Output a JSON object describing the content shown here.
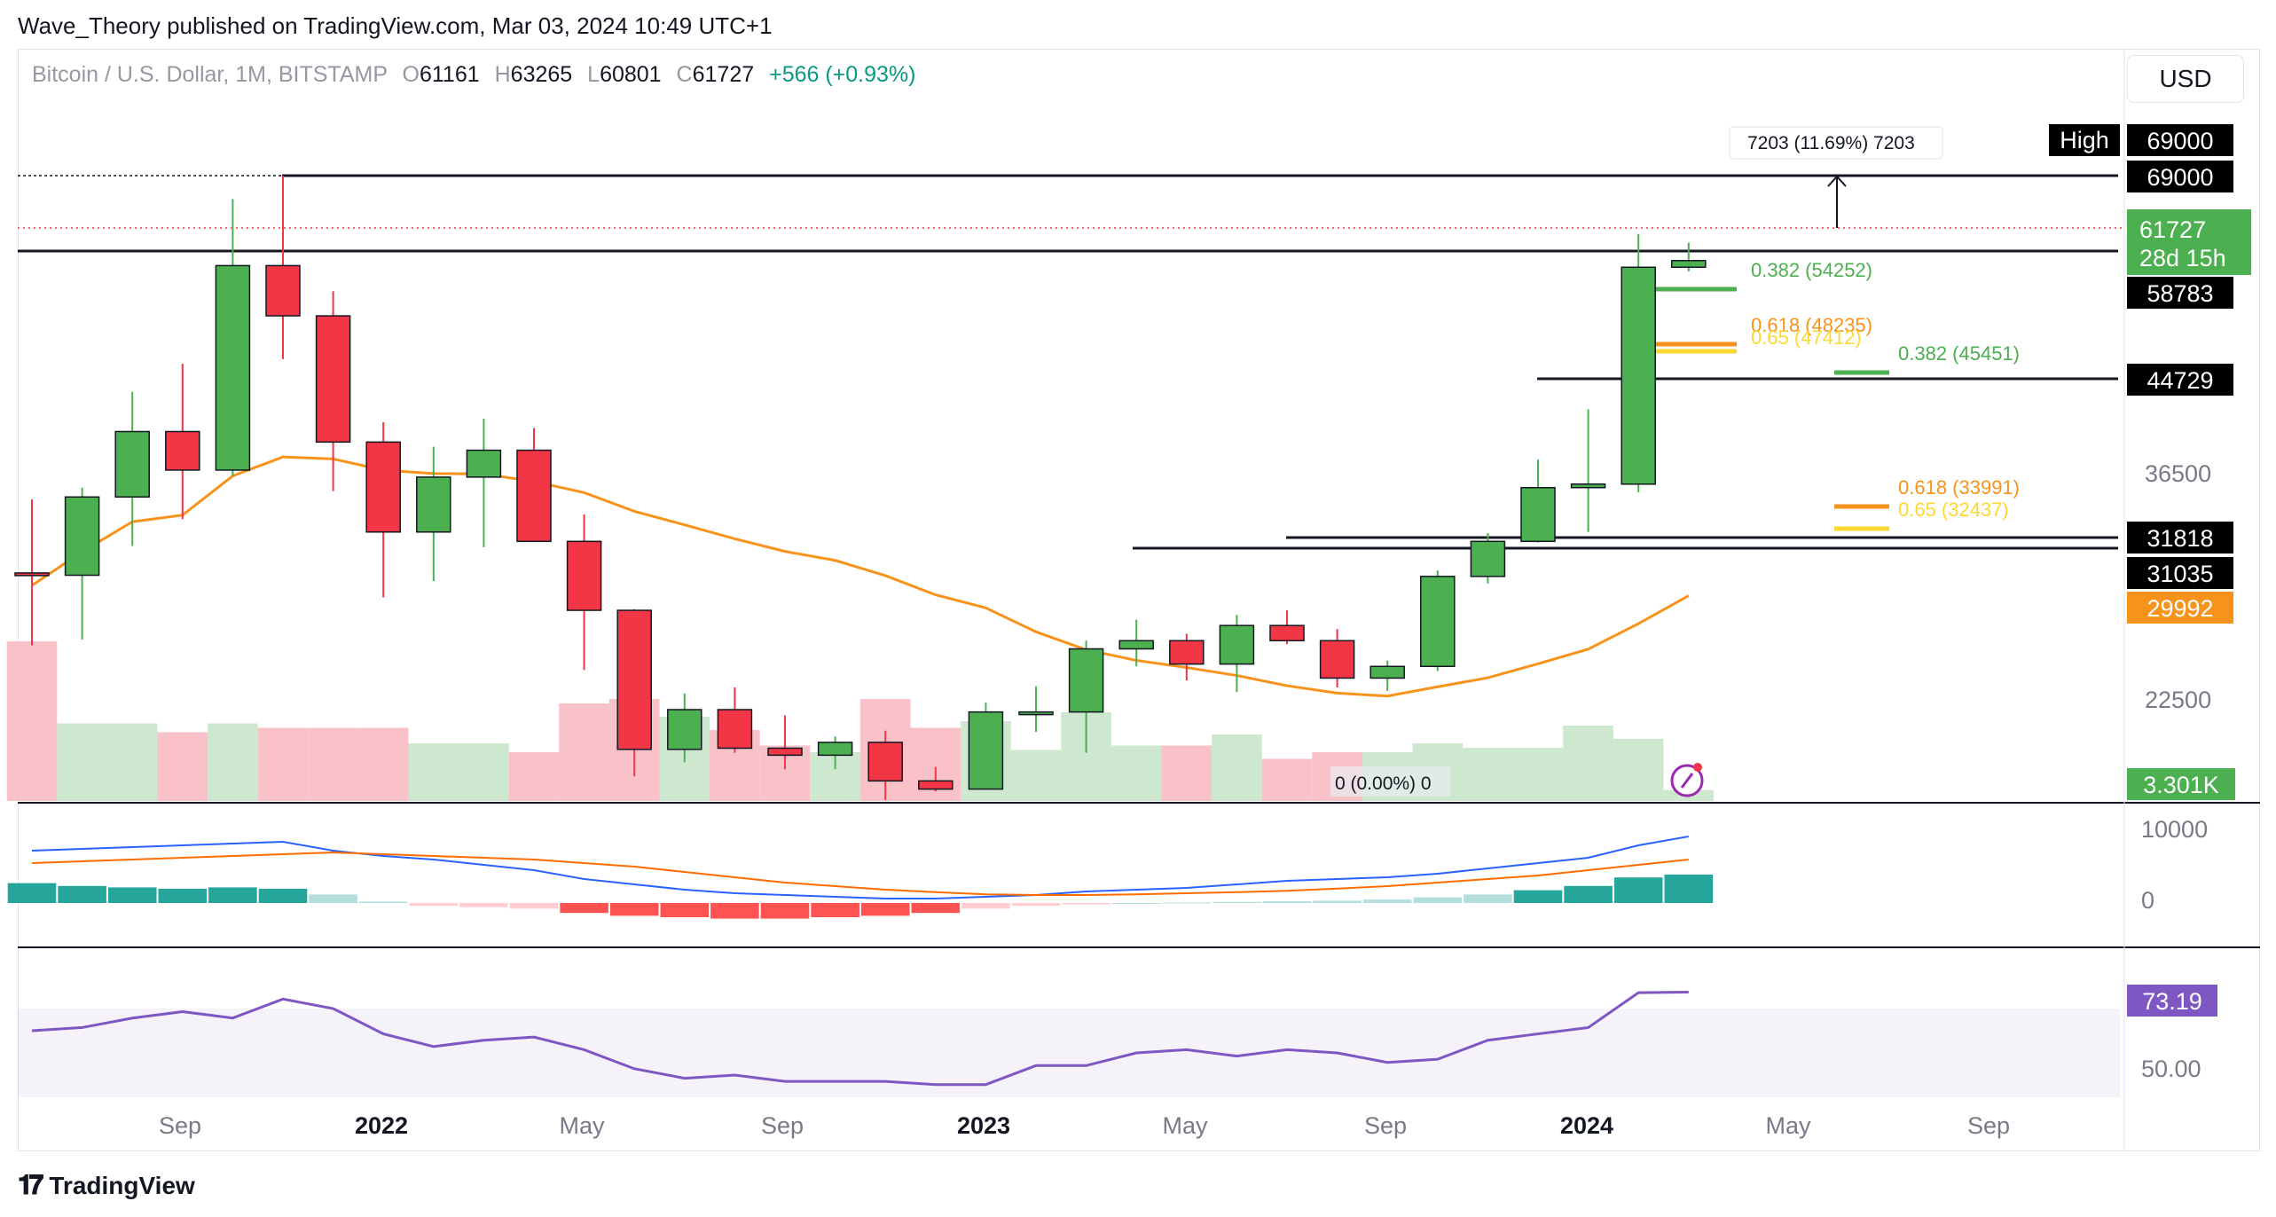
{
  "header": {
    "caption": "Wave_Theory published on TradingView.com, Mar 03, 2024 10:49 UTC+1"
  },
  "legend": {
    "symbol": "Bitcoin / U.S. Dollar, 1M, BITSTAMP",
    "open_label": "O",
    "open": "61161",
    "high_label": "H",
    "high": "63265",
    "low_label": "L",
    "low": "60801",
    "close_label": "C",
    "close": "61727",
    "change": "+566 (+0.93%)"
  },
  "currency_button": "USD",
  "footer": {
    "brand": "TradingView",
    "logo_icon": "tradingview-logo-icon"
  },
  "colors": {
    "up": "#4caf50",
    "down": "#f23645",
    "ma": "#f7931a",
    "fib_green": "#4caf50",
    "fib_orange": "#f7931a",
    "fib_yellow": "#fdd835",
    "rsi": "#7e57c2",
    "macd": "#2962ff",
    "signal": "#ff6d00"
  },
  "chart_data": {
    "type": "candlestick",
    "timeframe": "1M",
    "x_labels": [
      "Sep",
      "2022",
      "May",
      "Sep",
      "2023",
      "May",
      "Sep",
      "2024",
      "May",
      "Sep"
    ],
    "candles": [
      {
        "t": "2021-06",
        "o": 35000,
        "h": 41300,
        "l": 28800,
        "c": 34800
      },
      {
        "t": "2021-07",
        "o": 34800,
        "h": 42300,
        "l": 29300,
        "c": 41500
      },
      {
        "t": "2021-08",
        "o": 41500,
        "h": 50500,
        "l": 37300,
        "c": 47100
      },
      {
        "t": "2021-09",
        "o": 47100,
        "h": 52900,
        "l": 39600,
        "c": 43800
      },
      {
        "t": "2021-10",
        "o": 43800,
        "h": 67000,
        "l": 43300,
        "c": 61300
      },
      {
        "t": "2021-11",
        "o": 61300,
        "h": 69000,
        "l": 53300,
        "c": 57000
      },
      {
        "t": "2021-12",
        "o": 57000,
        "h": 59100,
        "l": 42000,
        "c": 46200
      },
      {
        "t": "2022-01",
        "o": 46200,
        "h": 47900,
        "l": 32900,
        "c": 38500
      },
      {
        "t": "2022-02",
        "o": 38500,
        "h": 45800,
        "l": 34300,
        "c": 43200
      },
      {
        "t": "2022-03",
        "o": 43200,
        "h": 48200,
        "l": 37200,
        "c": 45500
      },
      {
        "t": "2022-04",
        "o": 45500,
        "h": 47400,
        "l": 37700,
        "c": 37700
      },
      {
        "t": "2022-05",
        "o": 37700,
        "h": 40000,
        "l": 26700,
        "c": 31800
      },
      {
        "t": "2022-06",
        "o": 31800,
        "h": 31900,
        "l": 17600,
        "c": 19900
      },
      {
        "t": "2022-07",
        "o": 19900,
        "h": 24700,
        "l": 18800,
        "c": 23300
      },
      {
        "t": "2022-08",
        "o": 23300,
        "h": 25200,
        "l": 19600,
        "c": 20000
      },
      {
        "t": "2022-09",
        "o": 20000,
        "h": 22800,
        "l": 18200,
        "c": 19400
      },
      {
        "t": "2022-10",
        "o": 19400,
        "h": 21000,
        "l": 18200,
        "c": 20500
      },
      {
        "t": "2022-11",
        "o": 20500,
        "h": 21500,
        "l": 15500,
        "c": 17200
      },
      {
        "t": "2022-12",
        "o": 17200,
        "h": 18400,
        "l": 16300,
        "c": 16500
      },
      {
        "t": "2023-01",
        "o": 16500,
        "h": 23900,
        "l": 16500,
        "c": 23100
      },
      {
        "t": "2023-02",
        "o": 23100,
        "h": 25300,
        "l": 21400,
        "c": 23100
      },
      {
        "t": "2023-03",
        "o": 23100,
        "h": 29200,
        "l": 19600,
        "c": 28500
      },
      {
        "t": "2023-04",
        "o": 28500,
        "h": 31000,
        "l": 27000,
        "c": 29200
      },
      {
        "t": "2023-05",
        "o": 29200,
        "h": 29800,
        "l": 25800,
        "c": 27200
      },
      {
        "t": "2023-06",
        "o": 27200,
        "h": 31400,
        "l": 24800,
        "c": 30500
      },
      {
        "t": "2023-07",
        "o": 30500,
        "h": 31800,
        "l": 28900,
        "c": 29200
      },
      {
        "t": "2023-08",
        "o": 29200,
        "h": 30200,
        "l": 25200,
        "c": 26000
      },
      {
        "t": "2023-09",
        "o": 26000,
        "h": 27500,
        "l": 24900,
        "c": 27000
      },
      {
        "t": "2023-10",
        "o": 27000,
        "h": 35200,
        "l": 26600,
        "c": 34700
      },
      {
        "t": "2023-11",
        "o": 34700,
        "h": 38400,
        "l": 34100,
        "c": 37700
      },
      {
        "t": "2023-12",
        "o": 37700,
        "h": 44700,
        "l": 37600,
        "c": 42300
      },
      {
        "t": "2024-01",
        "o": 42300,
        "h": 49000,
        "l": 38500,
        "c": 42600
      },
      {
        "t": "2024-02",
        "o": 42600,
        "h": 64000,
        "l": 41900,
        "c": 61161
      },
      {
        "t": "2024-03",
        "o": 61161,
        "h": 63265,
        "l": 60801,
        "c": 61727
      }
    ],
    "moving_average": {
      "label": "29992"
    },
    "price_axis_ticks": [
      "36500",
      "22500"
    ],
    "horizontal_levels": [
      "69000",
      "58783",
      "44729",
      "31818",
      "31035"
    ],
    "fib_levels": [
      {
        "label": "0.382 (54252)",
        "color": "green"
      },
      {
        "label": "0.618 (48235)",
        "color": "orange"
      },
      {
        "label": "0.65 (47412)",
        "color": "yellow"
      },
      {
        "label": "0.382 (45451)",
        "color": "green"
      },
      {
        "label": "0.618 (33991)",
        "color": "orange"
      },
      {
        "label": "0.65 (32437)",
        "color": "yellow"
      }
    ],
    "measure_label": "7203 (11.69%) 7203",
    "zero_measure_label": "0 (0.00%) 0",
    "high_tag": {
      "label": "High",
      "value": "69000"
    },
    "current_price": {
      "value": "61727",
      "countdown": "28d 15h"
    },
    "volume": {
      "label": "3.301K"
    },
    "macd": {
      "axis_ticks": [
        "10000",
        "0"
      ]
    },
    "rsi": {
      "value": "73.19",
      "axis_ticks": [
        "50.00"
      ]
    }
  }
}
